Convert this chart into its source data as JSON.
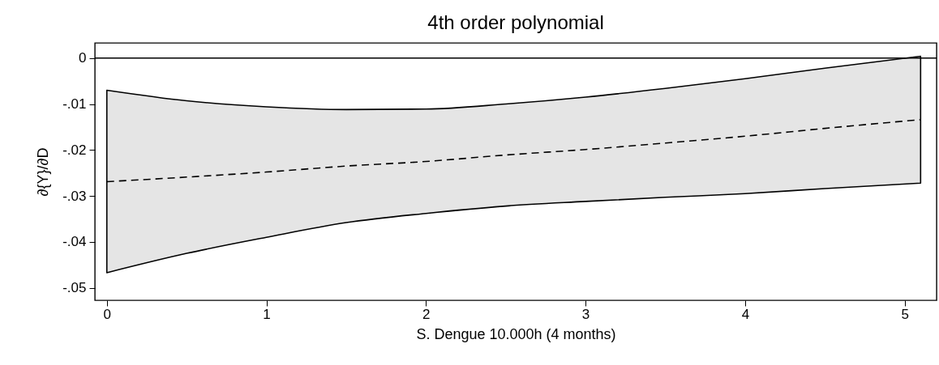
{
  "chart_data": {
    "type": "line",
    "title": "4th order polynomial",
    "xlabel": "S. Dengue 10.000h (4 months)",
    "ylabel": "∂{Y}/∂D",
    "x": [
      0,
      0.5,
      1,
      1.5,
      2,
      2.5,
      3,
      3.5,
      4,
      4.5,
      5.1
    ],
    "series": [
      {
        "color": "#000000",
        "values": [
          -0.0269,
          -0.0259,
          -0.0248,
          -0.0235,
          -0.0225,
          -0.0211,
          -0.0199,
          -0.0185,
          -0.017,
          -0.0153,
          -0.0134
        ],
        "lower": [
          -0.0467,
          -0.0425,
          -0.039,
          -0.0358,
          -0.0338,
          -0.0322,
          -0.0312,
          -0.0303,
          -0.0295,
          -0.0284,
          -0.0272
        ],
        "upper": [
          -0.007,
          -0.0093,
          -0.0106,
          -0.0112,
          -0.0111,
          -0.01,
          -0.0085,
          -0.0066,
          -0.0045,
          -0.0022,
          0.0004
        ]
      }
    ],
    "line_style": "dashed",
    "marker": "none",
    "grid": false,
    "xlim": [
      -0.075,
      5.2
    ],
    "xticks": [
      0,
      1,
      2,
      3,
      4,
      5
    ],
    "ylim": [
      -0.0527,
      0.0033
    ],
    "yticks": [
      0,
      {
        "value": -0.01,
        "label": "-.01"
      },
      {
        "value": -0.02,
        "label": "-.02"
      },
      {
        "value": -0.03,
        "label": "-.03"
      },
      {
        "value": -0.04,
        "label": "-.04"
      },
      {
        "value": -0.05,
        "label": "-.05"
      }
    ],
    "ref_lines": [
      {
        "axis": "y",
        "value": 0,
        "color": "#000000",
        "line_style": "solid"
      }
    ]
  }
}
